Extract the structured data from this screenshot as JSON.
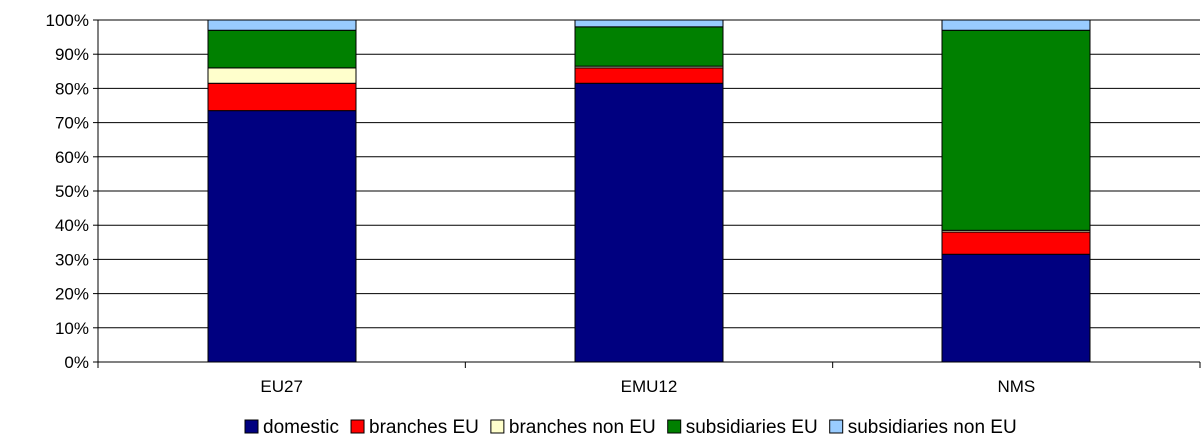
{
  "chart_data": {
    "type": "bar",
    "stacked": true,
    "percent_axis": true,
    "categories": [
      "EU27",
      "EMU12",
      "NMS"
    ],
    "series": [
      {
        "name": "domestic",
        "color": "#000080",
        "values": [
          73.5,
          81.5,
          31.5
        ]
      },
      {
        "name": "branches EU",
        "color": "#ff0000",
        "values": [
          8,
          4.5,
          6.5
        ]
      },
      {
        "name": "branches non EU",
        "color": "#ffffcc",
        "values": [
          4.5,
          0.5,
          0.5
        ]
      },
      {
        "name": "subsidiaries EU",
        "color": "#008000",
        "values": [
          11,
          11.5,
          58.5
        ]
      },
      {
        "name": "subsidiaries non EU",
        "color": "#99ccff",
        "values": [
          3,
          2,
          3
        ]
      }
    ],
    "yticks": [
      "0%",
      "10%",
      "20%",
      "30%",
      "40%",
      "50%",
      "60%",
      "70%",
      "80%",
      "90%",
      "100%"
    ],
    "ylim": [
      0,
      100
    ],
    "grid": true,
    "legend": "bottom"
  }
}
